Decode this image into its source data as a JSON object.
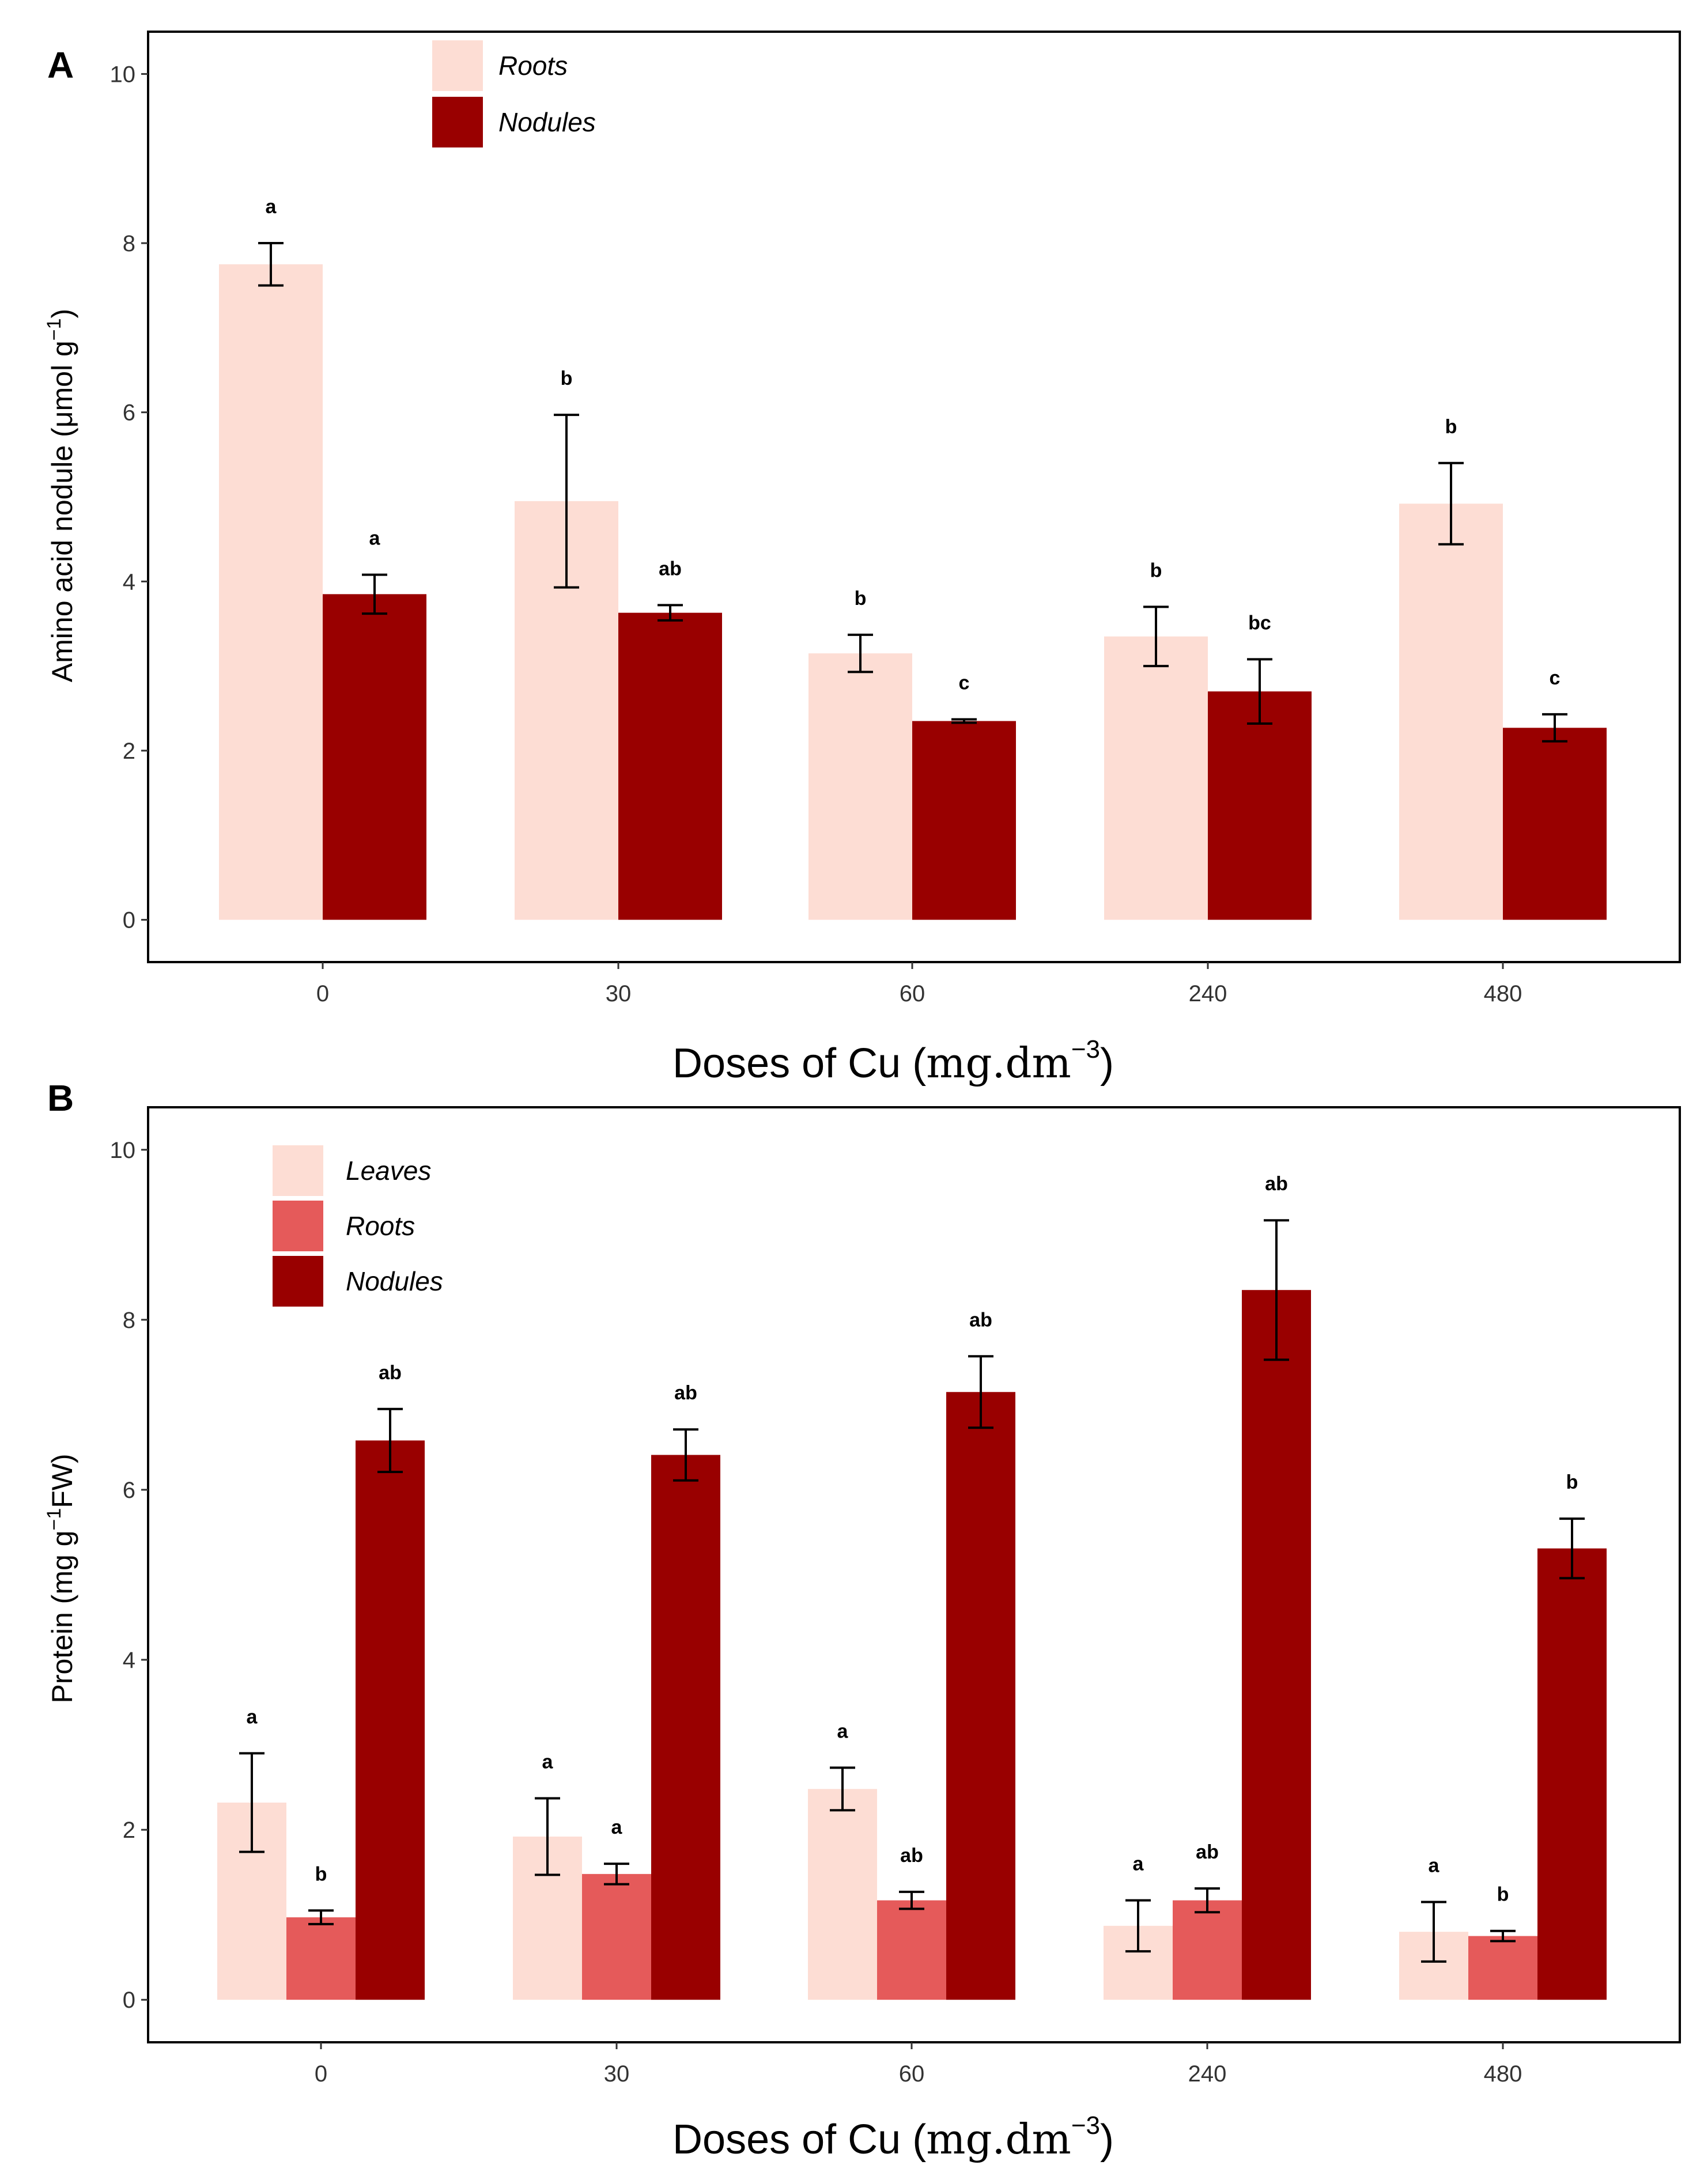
{
  "colors": {
    "leaves": "#FDDDD4",
    "roots_light": "#FDDDD4",
    "roots_mid": "#E55A5A",
    "nodules": "#990000"
  },
  "chart_data": [
    {
      "panel": "A",
      "type": "bar",
      "xlabel": "Doses of Cu (mg.dm−3)",
      "xlabel_parts": {
        "main": "Doses of Cu (",
        "unit": "mg.dm",
        "sup": "−3",
        "close": ")"
      },
      "ylabel": "Amino acid nodule (μmol g−1)",
      "ylabel_parts": {
        "main": "Amino acid nodule (μmol g",
        "sup": "−1",
        "close": ")"
      },
      "categories": [
        "0",
        "30",
        "60",
        "240",
        "480"
      ],
      "ylim": [
        -0.5,
        10.5
      ],
      "yticks": [
        0,
        2,
        4,
        6,
        8,
        10
      ],
      "ytick_labels": [
        "0",
        "2",
        "4",
        "6",
        "8",
        "10"
      ],
      "legend": "top-left",
      "series": [
        {
          "name": "Roots",
          "color": "#FDDDD4",
          "values": [
            7.75,
            4.95,
            3.15,
            3.35,
            4.92
          ],
          "errors": [
            0.25,
            1.02,
            0.22,
            0.35,
            0.48
          ],
          "letters": [
            "a",
            "b",
            "b",
            "b",
            "b"
          ]
        },
        {
          "name": "Nodules",
          "color": "#990000",
          "values": [
            3.85,
            3.63,
            2.35,
            2.7,
            2.27
          ],
          "errors": [
            0.23,
            0.09,
            0.02,
            0.38,
            0.16
          ],
          "letters": [
            "a",
            "ab",
            "c",
            "bc",
            "c"
          ]
        }
      ]
    },
    {
      "panel": "B",
      "type": "bar",
      "xlabel": "Doses of Cu (mg.dm−3)",
      "xlabel_parts": {
        "main": "Doses of Cu (",
        "unit": "mg.dm",
        "sup": "−3",
        "close": ")"
      },
      "ylabel": "Protein (mg g−1FW)",
      "ylabel_parts": {
        "main": "Protein (mg g",
        "sup": "−1",
        "close": "FW)"
      },
      "categories": [
        "0",
        "30",
        "60",
        "240",
        "480"
      ],
      "ylim": [
        -0.5,
        10.5
      ],
      "yticks": [
        0,
        2,
        4,
        6,
        8,
        10
      ],
      "ytick_labels": [
        "0",
        "2",
        "4",
        "6",
        "8",
        "10"
      ],
      "legend": "top-left",
      "series": [
        {
          "name": "Leaves",
          "color": "#FDDDD4",
          "values": [
            2.32,
            1.92,
            2.48,
            0.87,
            0.8
          ],
          "errors": [
            0.58,
            0.45,
            0.25,
            0.3,
            0.35
          ],
          "letters": [
            "a",
            "a",
            "a",
            "a",
            "a"
          ]
        },
        {
          "name": "Roots",
          "color": "#E55A5A",
          "values": [
            0.97,
            1.48,
            1.17,
            1.17,
            0.75
          ],
          "errors": [
            0.08,
            0.12,
            0.1,
            0.14,
            0.06
          ],
          "letters": [
            "b",
            "a",
            "ab",
            "ab",
            "b"
          ]
        },
        {
          "name": "Nodules",
          "color": "#990000",
          "values": [
            6.58,
            6.41,
            7.15,
            8.35,
            5.31
          ],
          "errors": [
            0.37,
            0.3,
            0.42,
            0.82,
            0.35
          ],
          "letters": [
            "ab",
            "ab",
            "ab",
            "ab",
            "b"
          ]
        }
      ]
    }
  ],
  "panels": {
    "a_label": "A",
    "b_label": "B"
  }
}
